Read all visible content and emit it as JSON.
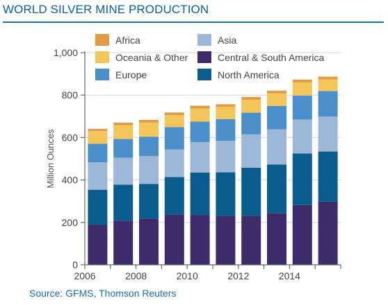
{
  "header": {
    "title": "WORLD SILVER MINE PRODUCTION"
  },
  "footer": {
    "source": "Source: GFMS, Thomson Reuters"
  },
  "chart_data": {
    "type": "bar",
    "stacked": true,
    "title": "WORLD SILVER MINE PRODUCTION",
    "xlabel": "",
    "ylabel": "Million Ounces",
    "ylim": [
      0,
      1000
    ],
    "yticks": [
      0,
      200,
      400,
      600,
      800,
      1000
    ],
    "ytick_labels": [
      "0",
      "200",
      "400",
      "600",
      "800",
      "1,000"
    ],
    "x": [
      2006,
      2007,
      2008,
      2009,
      2010,
      2011,
      2012,
      2013,
      2014,
      2015
    ],
    "xtick_labels": [
      "2006",
      "2008",
      "2010",
      "2012",
      "2014"
    ],
    "grid": "horizontal",
    "legend_position": "top",
    "series": [
      {
        "name": "Central & South America",
        "color": "#3d2b6b",
        "values": [
          188,
          208,
          218,
          238,
          235,
          230,
          230,
          243,
          282,
          298
        ]
      },
      {
        "name": "North America",
        "color": "#0b5c8e",
        "values": [
          166,
          170,
          163,
          176,
          200,
          206,
          228,
          230,
          243,
          236
        ]
      },
      {
        "name": "Asia",
        "color": "#9db8d6",
        "values": [
          129,
          127,
          131,
          130,
          143,
          148,
          157,
          166,
          160,
          165
        ]
      },
      {
        "name": "Europe",
        "color": "#4a8fcb",
        "values": [
          88,
          88,
          92,
          105,
          97,
          103,
          102,
          110,
          113,
          120
        ]
      },
      {
        "name": "Oceania & Other",
        "color": "#f4c65a",
        "values": [
          59,
          65,
          67,
          56,
          62,
          57,
          61,
          59,
          62,
          55
        ]
      },
      {
        "name": "Africa",
        "color": "#e29a45",
        "values": [
          11,
          12,
          12,
          13,
          13,
          13,
          13,
          13,
          13,
          13
        ]
      }
    ],
    "legend_order": [
      "Africa",
      "Asia",
      "Oceania & Other",
      "Central & South America",
      "Europe",
      "North America"
    ]
  }
}
